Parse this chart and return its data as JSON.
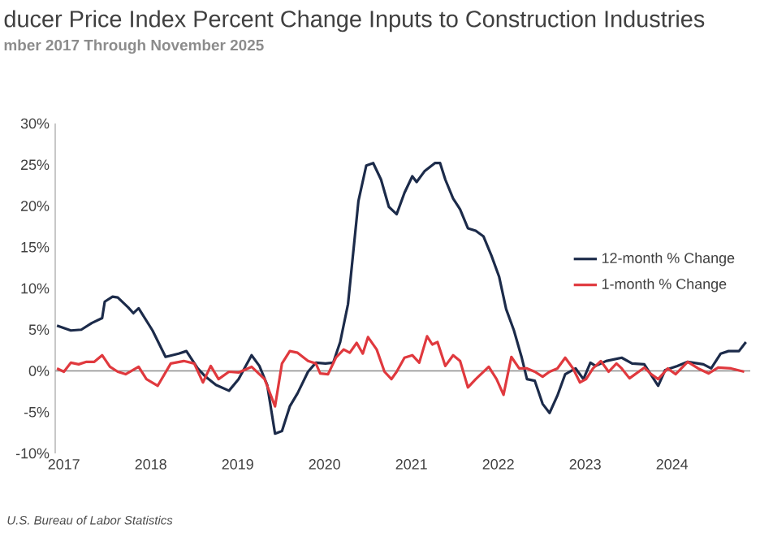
{
  "chart_data": {
    "type": "line",
    "title": "ducer Price Index Percent Change Inputs to Construction Industries",
    "subtitle": "mber 2017 Through November 2025",
    "annotations": [
      "U.S. Bureau of Labor Statistics"
    ],
    "xlim": [
      2016.9,
      2024.9
    ],
    "xticks": [
      2017,
      2018,
      2019,
      2020,
      2021,
      2022,
      2023,
      2024
    ],
    "ylim": [
      -10,
      30
    ],
    "yticks": [
      {
        "value": -10,
        "label": "-10%"
      },
      {
        "value": -5,
        "label": "-5%"
      },
      {
        "value": 0,
        "label": "0%"
      },
      {
        "value": 5,
        "label": "5%"
      },
      {
        "value": 10,
        "label": "10%"
      },
      {
        "value": 15,
        "label": "15%"
      },
      {
        "value": 20,
        "label": "20%"
      },
      {
        "value": 25,
        "label": "25%"
      },
      {
        "value": 30,
        "label": "30%"
      }
    ],
    "legend": "right",
    "marker": "none",
    "line_style": "solid",
    "ref_lines": [
      {
        "axis": "y",
        "value": 0,
        "color": "#8c8c8c"
      }
    ],
    "series": [
      {
        "name": "12-month % Change",
        "color": "#1c2b4a",
        "x": [
          2016.92,
          2017.08,
          2017.2,
          2017.32,
          2017.44,
          2017.47,
          2017.56,
          2017.62,
          2017.74,
          2017.8,
          2017.86,
          2018.02,
          2018.17,
          2018.32,
          2018.41,
          2018.54,
          2018.63,
          2018.75,
          2018.9,
          2019.01,
          2019.16,
          2019.25,
          2019.34,
          2019.43,
          2019.51,
          2019.6,
          2019.69,
          2019.81,
          2019.9,
          2020.01,
          2020.1,
          2020.18,
          2020.27,
          2020.39,
          2020.48,
          2020.56,
          2020.65,
          2020.74,
          2020.83,
          2020.92,
          2021.01,
          2021.06,
          2021.15,
          2021.27,
          2021.33,
          2021.39,
          2021.48,
          2021.56,
          2021.65,
          2021.74,
          2021.83,
          2021.92,
          2022.01,
          2022.09,
          2022.18,
          2022.27,
          2022.33,
          2022.42,
          2022.51,
          2022.59,
          2022.68,
          2022.77,
          2022.89,
          2022.98,
          2023.06,
          2023.12,
          2023.24,
          2023.42,
          2023.54,
          2023.68,
          2023.84,
          2023.92,
          2024.06,
          2024.18,
          2024.36,
          2024.45,
          2024.56,
          2024.65,
          2024.77,
          2024.85
        ],
        "values": [
          5.5,
          4.9,
          5.0,
          5.8,
          6.4,
          8.4,
          9.0,
          8.9,
          7.7,
          7.0,
          7.6,
          4.9,
          1.7,
          2.1,
          2.4,
          0.3,
          -0.7,
          -1.7,
          -2.4,
          -1.0,
          1.9,
          0.6,
          -1.7,
          -7.6,
          -7.3,
          -4.3,
          -2.7,
          -0.1,
          1.0,
          0.9,
          1.0,
          3.5,
          8.1,
          20.6,
          24.9,
          25.2,
          23.2,
          19.9,
          19.0,
          21.6,
          23.6,
          22.9,
          24.2,
          25.2,
          25.2,
          23.2,
          20.9,
          19.6,
          17.3,
          17.0,
          16.3,
          14.0,
          11.4,
          7.5,
          4.9,
          1.6,
          -1.0,
          -1.2,
          -4.0,
          -5.1,
          -3.0,
          -0.4,
          0.3,
          -1.0,
          1.0,
          0.6,
          1.2,
          1.6,
          0.9,
          0.8,
          -1.8,
          0.1,
          0.6,
          1.1,
          0.8,
          0.3,
          2.1,
          2.4,
          2.4,
          3.5
        ]
      },
      {
        "name": "1-month % Change",
        "color": "#e0393e",
        "x": [
          2016.92,
          2017.0,
          2017.08,
          2017.17,
          2017.26,
          2017.35,
          2017.44,
          2017.53,
          2017.62,
          2017.71,
          2017.86,
          2017.95,
          2018.08,
          2018.23,
          2018.38,
          2018.5,
          2018.6,
          2018.69,
          2018.78,
          2018.9,
          2019.01,
          2019.16,
          2019.31,
          2019.43,
          2019.51,
          2019.6,
          2019.69,
          2019.81,
          2019.9,
          2019.95,
          2020.04,
          2020.13,
          2020.22,
          2020.29,
          2020.37,
          2020.44,
          2020.5,
          2020.6,
          2020.69,
          2020.77,
          2020.83,
          2020.92,
          2021.01,
          2021.09,
          2021.18,
          2021.24,
          2021.3,
          2021.39,
          2021.48,
          2021.56,
          2021.65,
          2021.74,
          2021.89,
          2021.98,
          2022.06,
          2022.15,
          2022.24,
          2022.33,
          2022.42,
          2022.51,
          2022.59,
          2022.68,
          2022.77,
          2022.86,
          2022.94,
          2023.01,
          2023.09,
          2023.18,
          2023.27,
          2023.36,
          2023.42,
          2023.51,
          2023.68,
          2023.76,
          2023.84,
          2023.95,
          2024.04,
          2024.18,
          2024.3,
          2024.42,
          2024.53,
          2024.68,
          2024.83
        ],
        "values": [
          0.3,
          -0.1,
          1.0,
          0.8,
          1.1,
          1.1,
          1.9,
          0.5,
          -0.1,
          -0.4,
          0.5,
          -1.0,
          -1.8,
          0.9,
          1.2,
          0.9,
          -1.4,
          0.6,
          -1.0,
          -0.1,
          -0.2,
          0.5,
          -1.0,
          -4.3,
          0.9,
          2.4,
          2.2,
          1.2,
          0.9,
          -0.3,
          -0.4,
          1.6,
          2.6,
          2.2,
          3.4,
          2.1,
          4.1,
          2.6,
          -0.1,
          -1.0,
          -0.1,
          1.6,
          1.9,
          1.0,
          4.2,
          3.2,
          3.5,
          0.6,
          1.9,
          1.2,
          -2.0,
          -1.0,
          0.5,
          -1.0,
          -2.9,
          1.7,
          0.3,
          0.3,
          -0.1,
          -0.7,
          -0.1,
          0.3,
          1.6,
          0.3,
          -1.4,
          -1.0,
          0.3,
          1.2,
          -0.1,
          0.9,
          0.3,
          -0.9,
          0.4,
          -0.4,
          -1.0,
          0.3,
          -0.4,
          1.1,
          0.3,
          -0.3,
          0.4,
          0.3,
          -0.1
        ]
      }
    ]
  }
}
